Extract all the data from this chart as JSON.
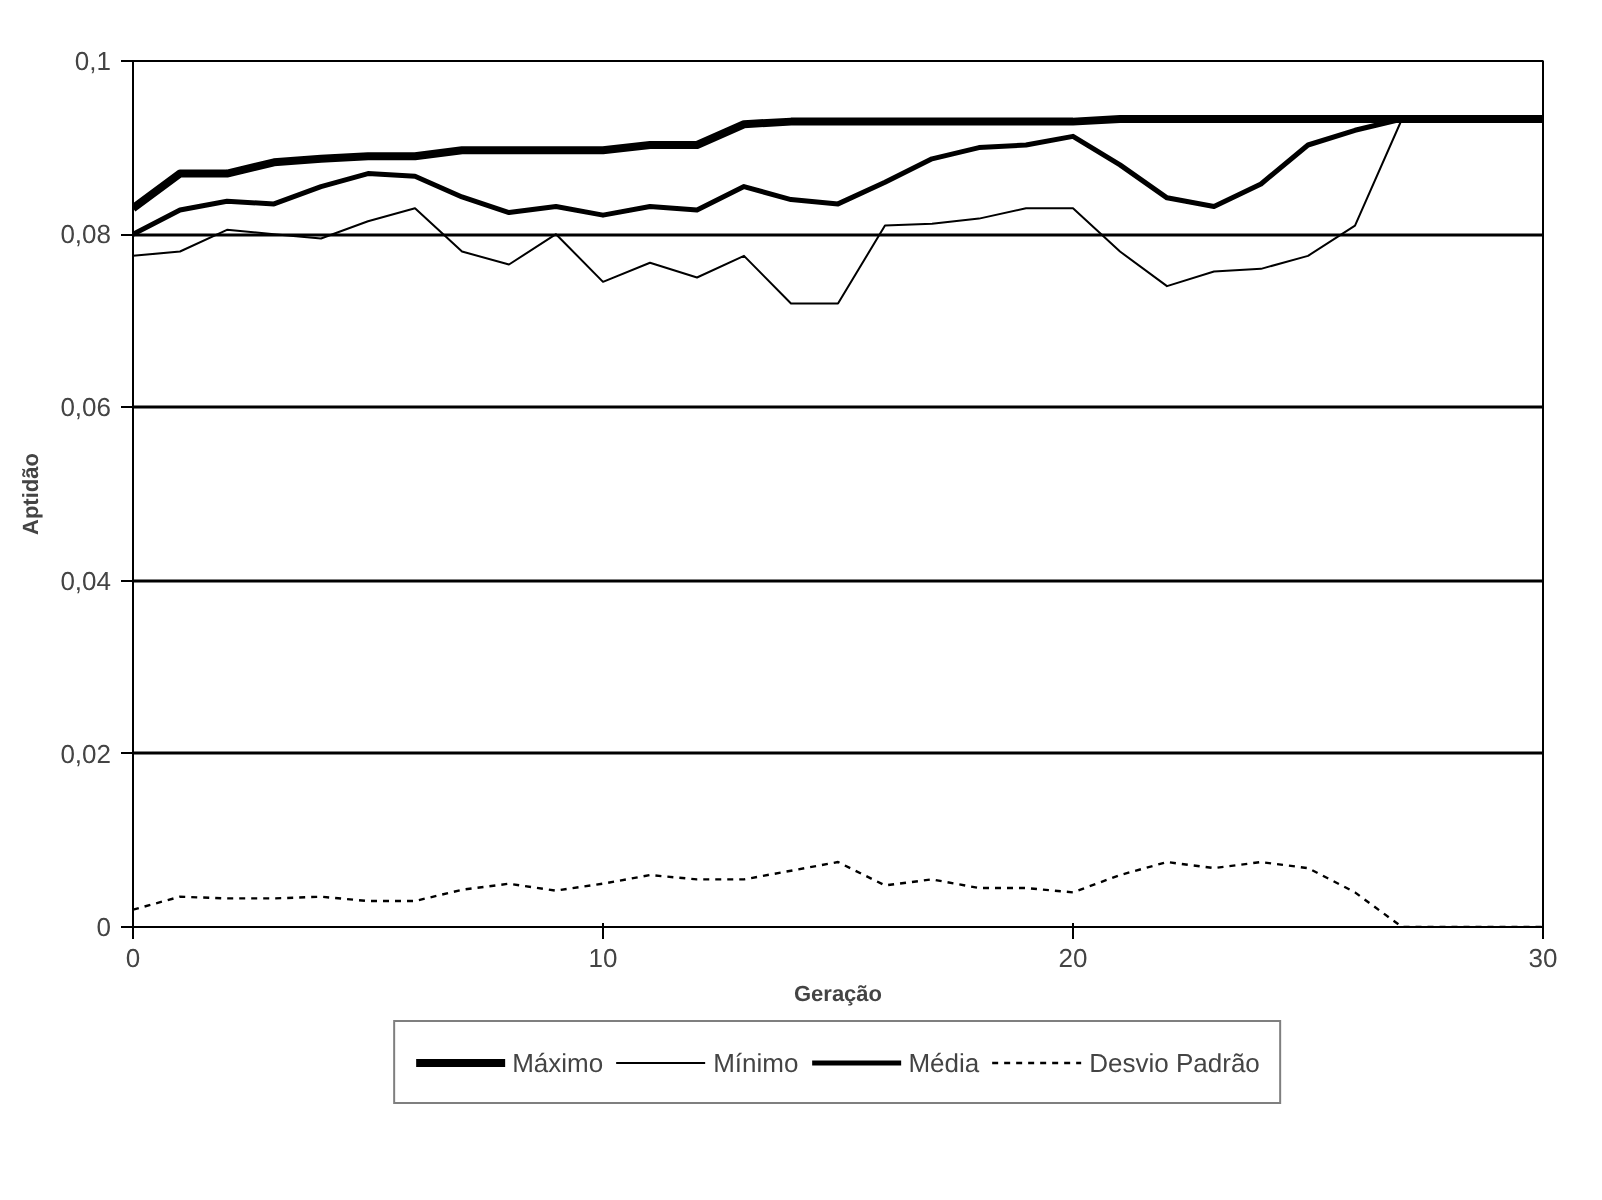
{
  "chart_data": {
    "type": "line",
    "xlabel": "Geração",
    "ylabel": "Aptidão",
    "x": [
      0,
      1,
      2,
      3,
      4,
      5,
      6,
      7,
      8,
      9,
      10,
      11,
      12,
      13,
      14,
      15,
      16,
      17,
      18,
      19,
      20,
      21,
      22,
      23,
      24,
      25,
      26,
      27,
      28,
      29,
      30
    ],
    "series": [
      {
        "name": "Máximo",
        "color": "#000000",
        "line_style": "solid",
        "values": [
          0.083,
          0.087,
          0.087,
          0.0883,
          0.0887,
          0.089,
          0.089,
          0.0897,
          0.0897,
          0.0897,
          0.0897,
          0.0903,
          0.0903,
          0.0927,
          0.093,
          0.093,
          0.093,
          0.093,
          0.093,
          0.093,
          0.093,
          0.0933,
          0.0933,
          0.0933,
          0.0933,
          0.0933,
          0.0933,
          0.0933,
          0.0933,
          0.0933,
          0.0933
        ]
      },
      {
        "name": "Mínimo",
        "color": "#000000",
        "line_style": "solid",
        "values": [
          0.0775,
          0.078,
          0.0805,
          0.08,
          0.0795,
          0.0815,
          0.083,
          0.078,
          0.0765,
          0.08,
          0.0745,
          0.0767,
          0.075,
          0.0775,
          0.072,
          0.072,
          0.081,
          0.0812,
          0.0818,
          0.083,
          0.083,
          0.078,
          0.074,
          0.0757,
          0.076,
          0.0775,
          0.081,
          0.0933,
          0.0933,
          0.0933,
          0.0933
        ]
      },
      {
        "name": "Média",
        "color": "#000000",
        "line_style": "solid",
        "values": [
          0.08,
          0.0828,
          0.0838,
          0.0835,
          0.0855,
          0.087,
          0.0867,
          0.0843,
          0.0825,
          0.0832,
          0.0822,
          0.0832,
          0.0828,
          0.0855,
          0.084,
          0.0835,
          0.086,
          0.0887,
          0.09,
          0.0903,
          0.0913,
          0.088,
          0.0842,
          0.0832,
          0.0858,
          0.0903,
          0.092,
          0.0933,
          0.0933,
          0.0933,
          0.0933
        ]
      },
      {
        "name": "Desvio Padrão",
        "color": "#000000",
        "line_style": "dashed",
        "values": [
          0.002,
          0.0035,
          0.0033,
          0.0033,
          0.0035,
          0.003,
          0.003,
          0.0043,
          0.005,
          0.0042,
          0.005,
          0.006,
          0.0055,
          0.0055,
          0.0065,
          0.0075,
          0.0048,
          0.0055,
          0.0045,
          0.0045,
          0.004,
          0.006,
          0.0075,
          0.0068,
          0.0075,
          0.0068,
          0.004,
          0,
          0,
          0,
          0
        ]
      }
    ],
    "xlim": [
      0,
      30
    ],
    "xticks": [
      0,
      10,
      20,
      30
    ],
    "ylim": [
      0,
      0.1
    ],
    "yticks": [
      {
        "value": 0,
        "label": "0"
      },
      {
        "value": 0.02,
        "label": "0,02"
      },
      {
        "value": 0.04,
        "label": "0,04"
      },
      {
        "value": 0.06,
        "label": "0,06"
      },
      {
        "value": 0.08,
        "label": "0,08"
      },
      {
        "value": 0.1,
        "label": "0,1"
      }
    ],
    "grid": "y",
    "legend": "bottom",
    "marker": "none"
  }
}
